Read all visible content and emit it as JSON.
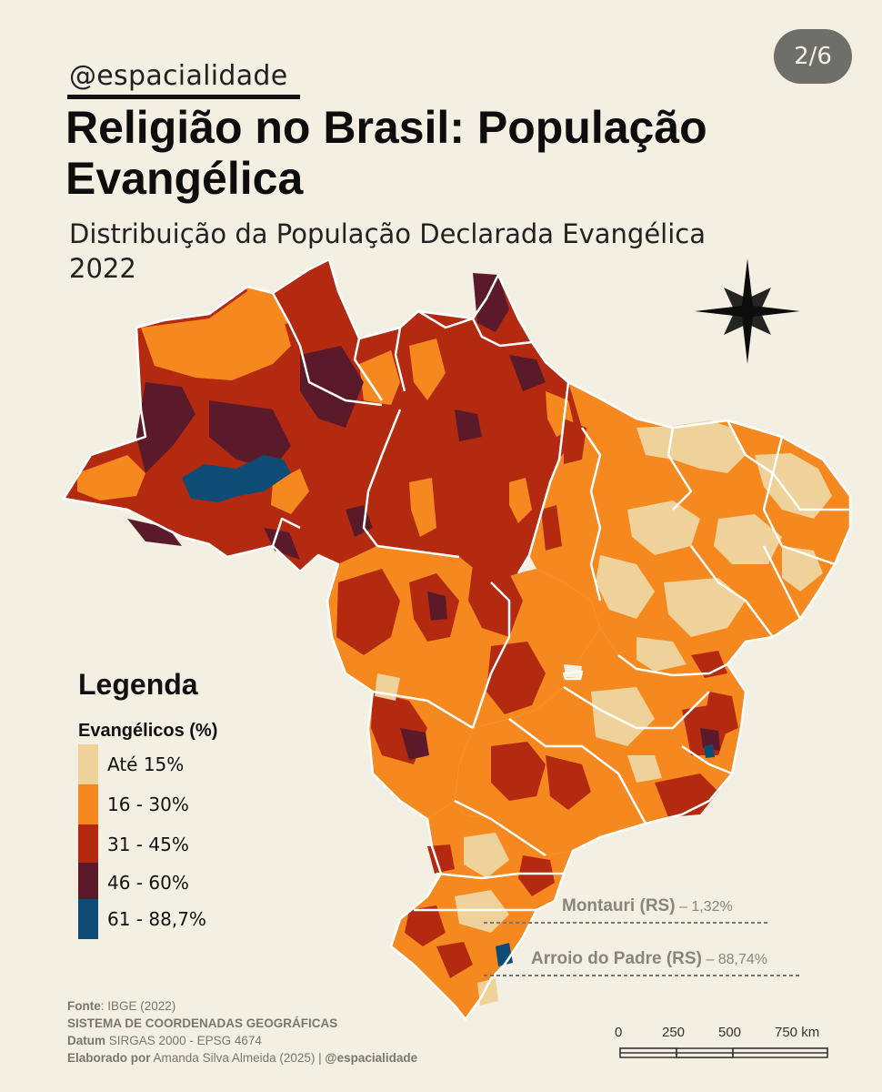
{
  "header": {
    "handle": "@espacialidade",
    "page_indicator": "2/6",
    "title": "Religião no Brasil: População Evangélica",
    "subtitle_line1": "Distribuição da População Declarada Evangélica",
    "subtitle_line2": "2022"
  },
  "legend": {
    "title": "Legenda",
    "subtitle": "Evangélicos (%)",
    "classes": [
      {
        "label": "Até 15%",
        "color": "#efd29a"
      },
      {
        "label": "16 - 30%",
        "color": "#f5891f"
      },
      {
        "label": "31 - 45%",
        "color": "#b42a10"
      },
      {
        "label": "46 - 60%",
        "color": "#5a1a2a"
      },
      {
        "label": "61 - 88,7%",
        "color": "#0f4c75"
      }
    ]
  },
  "annotations": [
    {
      "place": "Montauri (RS)",
      "value": "– 1,32%"
    },
    {
      "place": "Arroio do Padre (RS)",
      "value": "– 88,74%"
    }
  ],
  "footer": {
    "source_label": "Fonte",
    "source_value": ": IBGE (2022)",
    "crs_heading": "SISTEMA DE COORDENADAS GEOGRÁFICAS",
    "datum_label": "Datum",
    "datum_value": "SIRGAS 2000 - EPSG 4674",
    "author_label": "Elaborado por",
    "author_value": "Amanda Silva Almeida (2025) |",
    "author_handle": "@espacialidade"
  },
  "scale_bar": {
    "ticks": [
      "0",
      "250",
      "500",
      "750 km"
    ]
  },
  "icons": {
    "north_arrow": "compass-star-icon"
  },
  "colors": {
    "background": "#f4efe3",
    "border": "#ffffff",
    "annotation": "#8a857c"
  }
}
